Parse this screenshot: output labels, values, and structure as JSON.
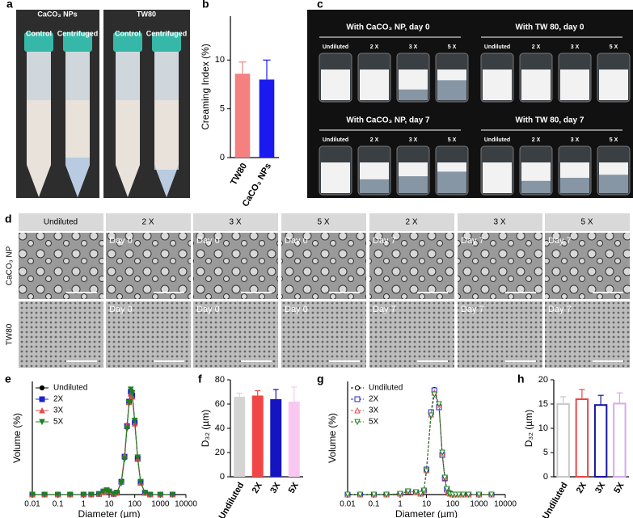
{
  "panel_labels": [
    "a",
    "b",
    "c",
    "d",
    "e",
    "f",
    "g",
    "h"
  ],
  "panel_a": {
    "titles": [
      "CaCO₃ NPs",
      "TW80"
    ],
    "caps": [
      "Control",
      "Centrifuged"
    ]
  },
  "panel_c": {
    "titles": [
      "With CaCO₃ NP,  day 0",
      "With TW 80, day 0",
      "With CaCO₃ NP, day 7",
      "With TW 80, day 7"
    ],
    "vials": [
      "Undiluted",
      "2 X",
      "3 X",
      "5 X"
    ]
  },
  "panel_d": {
    "columns": [
      "Undiluted",
      "2 X",
      "3 X",
      "5 X",
      "2 X",
      "3 X",
      "5 X"
    ],
    "rows": [
      "CaCO₃ NP",
      "TW80"
    ],
    "days": [
      "Day 0",
      "Day 0",
      "Day 0",
      "Day 7",
      "Day 7",
      "Day 7"
    ]
  },
  "chart_data": [
    {
      "type": "bar",
      "ylabel": "Creaming Index (%)",
      "categories": [
        "TW80",
        "CaCO₃ NPs"
      ],
      "values": [
        8.6,
        8.0
      ],
      "errors": [
        1.2,
        2.0
      ],
      "colors": [
        "#f48080",
        "#1a1af0"
      ],
      "hollow": false,
      "ylim": [
        0,
        14.5
      ],
      "yticks": [
        0,
        5,
        10
      ]
    },
    {
      "type": "line",
      "log_x": true,
      "xlabel": "Diameter (µm)",
      "ylabel": "Volume (%)",
      "x": [
        0.01,
        0.03,
        0.1,
        0.3,
        1,
        2,
        4,
        6,
        8,
        10,
        15,
        20,
        30,
        40,
        50,
        60,
        70,
        80,
        100,
        130,
        170,
        250,
        400,
        1000,
        3000
      ],
      "xlim": [
        0.01,
        10000
      ],
      "xticks": [
        0.01,
        0.1,
        1,
        10,
        100,
        1000,
        10000
      ],
      "ylim": [
        0,
        18.5
      ],
      "filled": true,
      "series": [
        {
          "name": "Undiluted",
          "color": "#000000",
          "marker": "circle",
          "values": [
            0,
            0,
            0,
            0,
            0,
            0,
            0.1,
            0.5,
            0.7,
            0.5,
            0.1,
            0.3,
            2,
            6,
            11,
            15,
            17,
            16.5,
            12,
            6,
            2,
            0.3,
            0,
            0,
            0
          ]
        },
        {
          "name": "2X",
          "color": "#2020d0",
          "marker": "square",
          "values": [
            0,
            0,
            0,
            0,
            0,
            0,
            0.1,
            0.5,
            0.7,
            0.5,
            0.1,
            0.3,
            2.1,
            6.2,
            11.2,
            15.2,
            16.8,
            16.2,
            11.8,
            5.9,
            2,
            0.3,
            0,
            0,
            0
          ]
        },
        {
          "name": "3X",
          "color": "#e05050",
          "marker": "triangle",
          "values": [
            0,
            0,
            0,
            0,
            0,
            0,
            0.1,
            0.4,
            0.6,
            0.5,
            0.1,
            0.3,
            2.2,
            6.4,
            11.4,
            15.1,
            16.5,
            16,
            11.6,
            5.8,
            1.9,
            0.3,
            0,
            0,
            0
          ]
        },
        {
          "name": "5X",
          "color": "#208020",
          "marker": "triangle-down",
          "values": [
            0,
            0,
            0,
            0,
            0,
            0,
            0.1,
            0.5,
            0.7,
            0.5,
            0.1,
            0.3,
            1.9,
            5.8,
            10.8,
            15,
            17.2,
            16.6,
            12.1,
            6.1,
            2.1,
            0.3,
            0,
            0,
            0
          ]
        }
      ]
    },
    {
      "type": "bar",
      "ylabel": "D₃₂ (µm)",
      "categories": [
        "Undiluted",
        "2X",
        "3X",
        "5X"
      ],
      "values": [
        66,
        67,
        64,
        62
      ],
      "errors": [
        3,
        4,
        8,
        12
      ],
      "colors": [
        "#d4d4d4",
        "#f04646",
        "#1414c0",
        "#f8c8f0"
      ],
      "hollow": false,
      "ylim": [
        0,
        80
      ],
      "yticks": [
        0,
        20,
        40,
        60,
        80
      ]
    },
    {
      "type": "line",
      "log_x": true,
      "xlabel": "Diameter (µm)",
      "ylabel": "Volume (%)",
      "x": [
        0.01,
        0.03,
        0.1,
        0.3,
        1,
        2,
        4,
        6,
        8,
        10,
        15,
        20,
        30,
        40,
        50,
        60,
        70,
        80,
        100,
        130,
        170,
        250,
        400,
        1000,
        3000
      ],
      "xlim": [
        0.01,
        10000
      ],
      "xticks": [
        0.01,
        0.1,
        1,
        10,
        100,
        1000,
        10000
      ],
      "ylim": [
        0,
        14
      ],
      "filled": false,
      "series": [
        {
          "name": "Undiluted",
          "color": "#000000",
          "marker": "circle",
          "values": [
            0,
            0,
            0,
            0,
            0.1,
            0.4,
            0.3,
            0.1,
            0.5,
            3,
            10,
            13,
            11,
            5,
            2,
            0.6,
            0.2,
            0.1,
            0,
            0,
            0,
            0,
            0,
            0,
            0
          ]
        },
        {
          "name": "2X",
          "color": "#2020d0",
          "marker": "square",
          "values": [
            0,
            0,
            0,
            0,
            0.1,
            0.4,
            0.3,
            0.1,
            0.5,
            3.1,
            10.2,
            12.9,
            10.8,
            4.9,
            2,
            0.6,
            0.2,
            0.1,
            0,
            0,
            0,
            0,
            0,
            0,
            0
          ]
        },
        {
          "name": "3X",
          "color": "#e05050",
          "marker": "triangle",
          "values": [
            0,
            0,
            0,
            0,
            0.1,
            0.4,
            0.3,
            0.1,
            0.5,
            3,
            9.9,
            12.6,
            11.1,
            5.1,
            2.1,
            0.6,
            0.2,
            0.1,
            0,
            0,
            0,
            0,
            0,
            0,
            0
          ]
        },
        {
          "name": "5X",
          "color": "#208020",
          "marker": "triangle-down",
          "values": [
            0,
            0,
            0,
            0,
            0.1,
            0.4,
            0.3,
            0.1,
            0.5,
            2.9,
            9.8,
            12.4,
            11.2,
            5.2,
            2.1,
            0.7,
            0.2,
            0.1,
            0,
            0,
            0,
            0,
            0,
            0,
            0
          ]
        }
      ]
    },
    {
      "type": "bar",
      "ylabel": "D₃₂ (µm)",
      "categories": [
        "Undiluted",
        "2X",
        "3X",
        "5X"
      ],
      "values": [
        15,
        16,
        14.8,
        15.1
      ],
      "errors": [
        1.5,
        2,
        2,
        2.2
      ],
      "colors": [
        "#c8c8c8",
        "#f04646",
        "#1414a0",
        "#d8a8f0"
      ],
      "hollow": true,
      "ylim": [
        0,
        20
      ],
      "yticks": [
        0,
        5,
        10,
        15,
        20
      ]
    }
  ]
}
